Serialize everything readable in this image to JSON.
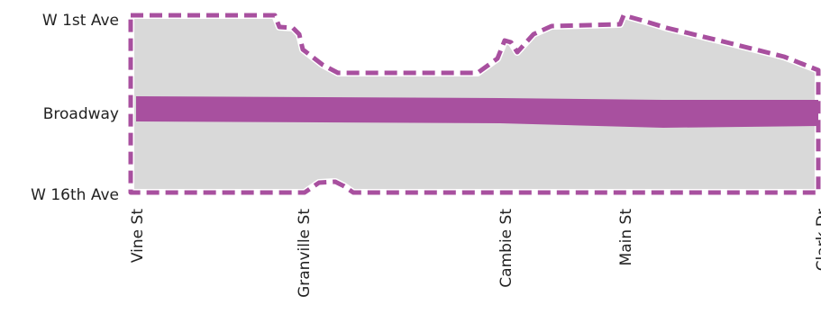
{
  "colors": {
    "area_fill": "#d9d9d9",
    "boundary": "#a8509f",
    "corridor": "#a8509f",
    "boundary_outline": "#ffffff",
    "label_text": "#222222"
  },
  "streets": {
    "north_south": [
      "W 1st Ave",
      "Broadway",
      "W 16th Ave"
    ],
    "east_west": [
      "Vine St",
      "Granville St",
      "Cambie St",
      "Main St",
      "Clark Dr"
    ]
  }
}
